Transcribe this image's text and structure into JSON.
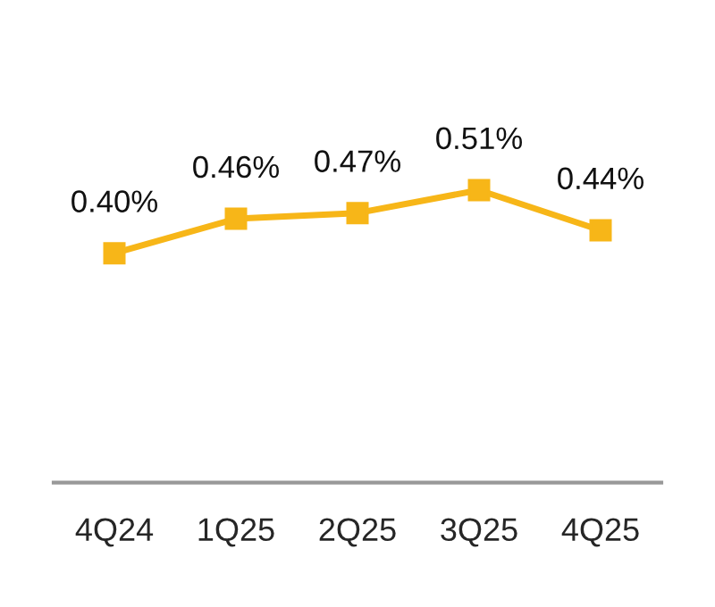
{
  "chart_data": {
    "type": "line",
    "categories": [
      "4Q24",
      "1Q25",
      "2Q25",
      "3Q25",
      "4Q25"
    ],
    "series": [
      {
        "color": "#f7b618",
        "values": [
          0.4,
          0.46,
          0.47,
          0.51,
          0.44
        ],
        "value_labels": [
          "0.40%",
          "0.46%",
          "0.47%",
          "0.51%",
          "0.44%"
        ]
      }
    ],
    "marker": "square",
    "line_style": "solid",
    "grid": false,
    "legend": false,
    "tick_labels": "x"
  }
}
